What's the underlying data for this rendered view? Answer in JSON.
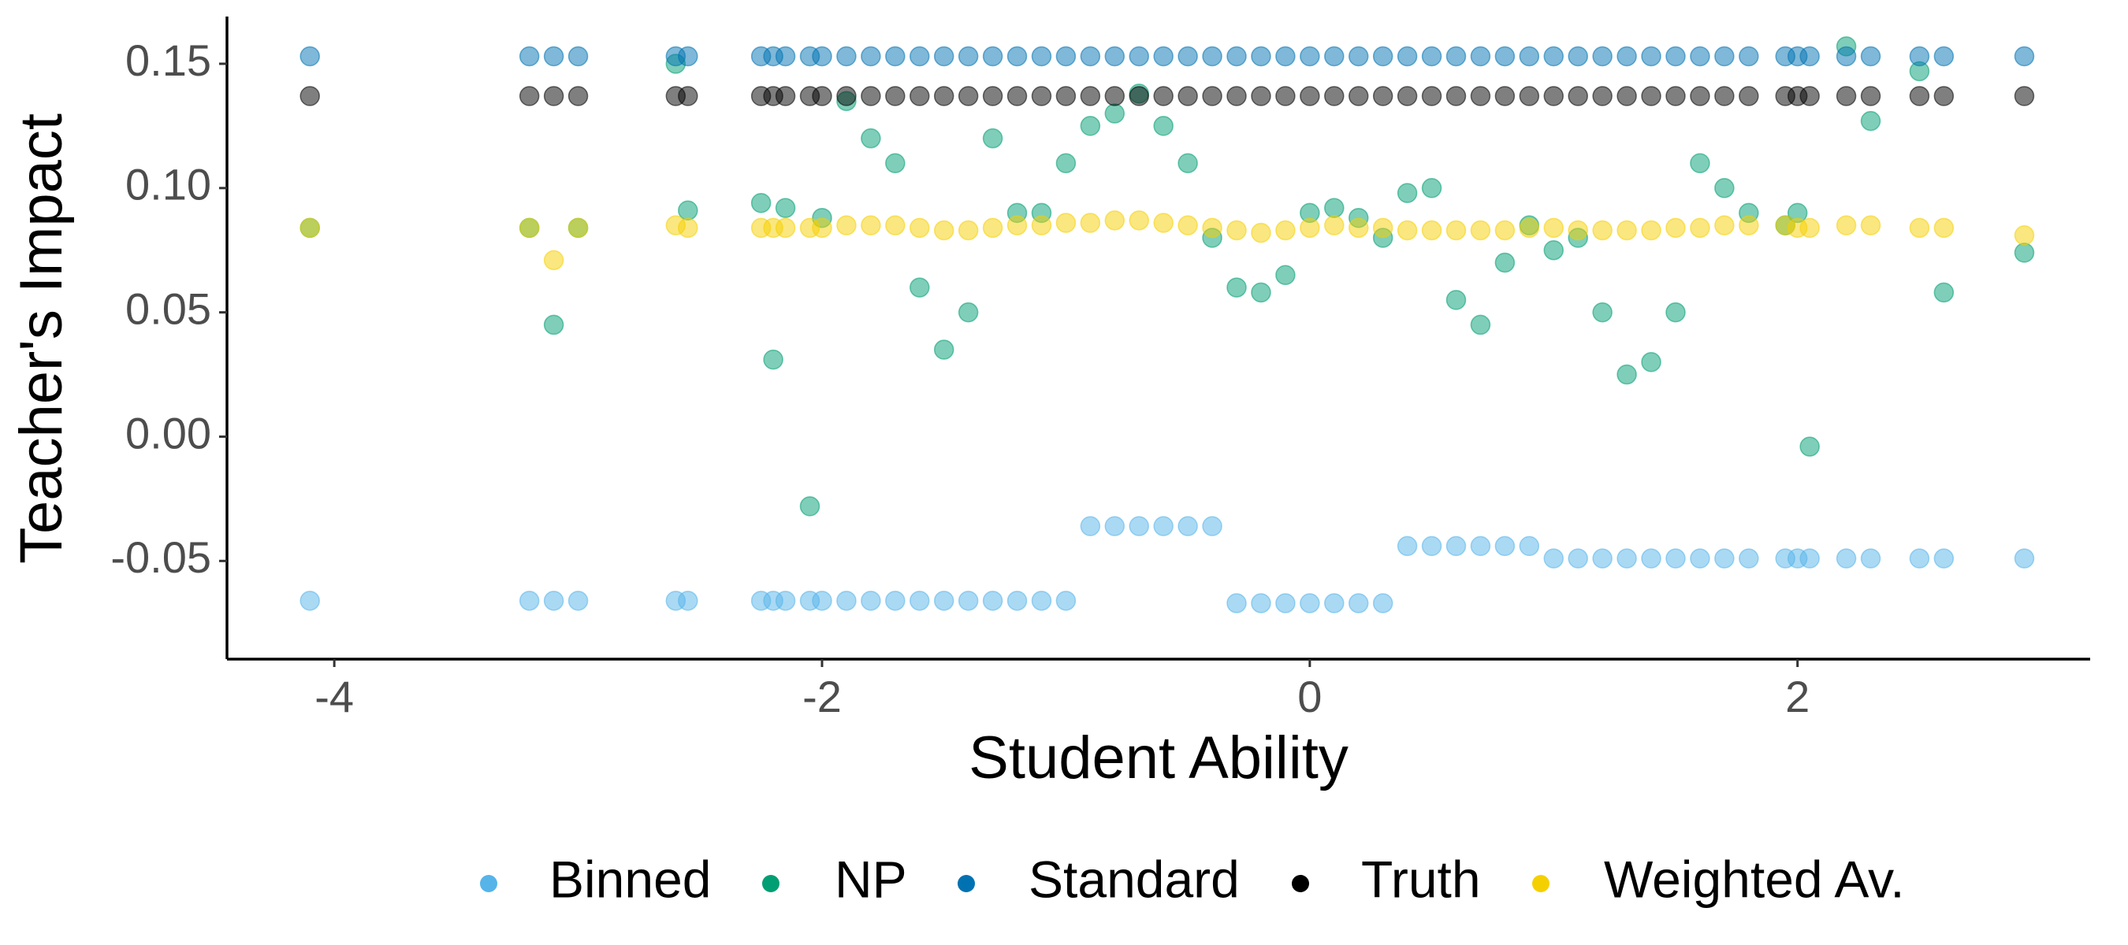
{
  "chart_data": {
    "type": "scatter",
    "xlabel": "Student Ability",
    "ylabel": "Teacher's Impact",
    "xlim": [
      -4.44,
      3.2
    ],
    "ylim": [
      -0.0895,
      0.169
    ],
    "xticks": [
      -4,
      -2,
      0,
      2
    ],
    "yticks": [
      {
        "value": -0.05,
        "label": "-0.05"
      },
      {
        "value": 0,
        "label": "0.00"
      },
      0.05,
      {
        "value": 0.1,
        "label": "0.10"
      },
      0.15
    ],
    "grid": false,
    "legend": "bottom",
    "series": [
      {
        "name": "Binned",
        "color": "#56b4e9",
        "x": [
          -4.1,
          -3.2,
          -3.1,
          -3.0,
          -2.6,
          -2.55,
          -2.25,
          -2.2,
          -2.15,
          -2.05,
          -2.0,
          -1.9,
          -1.8,
          -1.7,
          -1.6,
          -1.5,
          -1.4,
          -1.3,
          -1.2,
          -1.1,
          -1.0,
          -0.9,
          -0.8,
          -0.7,
          -0.6,
          -0.5,
          -0.4,
          -0.3,
          -0.2,
          -0.1,
          0.0,
          0.1,
          0.2,
          0.3,
          0.4,
          0.5,
          0.6,
          0.7,
          0.8,
          0.9,
          1.0,
          1.1,
          1.2,
          1.3,
          1.4,
          1.5,
          1.6,
          1.7,
          1.8,
          1.95,
          2.0,
          2.05,
          2.2,
          2.3,
          2.5,
          2.6,
          2.93
        ],
        "values": [
          -0.066,
          -0.066,
          -0.066,
          -0.066,
          -0.066,
          -0.066,
          -0.066,
          -0.066,
          -0.066,
          -0.066,
          -0.066,
          -0.066,
          -0.066,
          -0.066,
          -0.066,
          -0.066,
          -0.066,
          -0.066,
          -0.066,
          -0.066,
          -0.066,
          -0.036,
          -0.036,
          -0.036,
          -0.036,
          -0.036,
          -0.036,
          -0.067,
          -0.067,
          -0.067,
          -0.067,
          -0.067,
          -0.067,
          -0.067,
          -0.044,
          -0.044,
          -0.044,
          -0.044,
          -0.044,
          -0.044,
          -0.049,
          -0.049,
          -0.049,
          -0.049,
          -0.049,
          -0.049,
          -0.049,
          -0.049,
          -0.049,
          -0.049,
          -0.049,
          -0.049,
          -0.049,
          -0.049,
          -0.049,
          -0.049,
          -0.049
        ]
      },
      {
        "name": "NP",
        "color": "#009e73",
        "x": [
          -4.1,
          -3.2,
          -3.1,
          -3.0,
          -2.6,
          -2.55,
          -2.25,
          -2.2,
          -2.15,
          -2.05,
          -2.0,
          -1.9,
          -1.8,
          -1.7,
          -1.6,
          -1.5,
          -1.4,
          -1.3,
          -1.2,
          -1.1,
          -1.0,
          -0.9,
          -0.8,
          -0.7,
          -0.6,
          -0.5,
          -0.4,
          -0.3,
          -0.2,
          -0.1,
          0.0,
          0.1,
          0.2,
          0.3,
          0.4,
          0.5,
          0.6,
          0.7,
          0.8,
          0.9,
          1.0,
          1.1,
          1.2,
          1.3,
          1.4,
          1.5,
          1.6,
          1.7,
          1.8,
          1.95,
          2.0,
          2.05,
          2.2,
          2.3,
          2.5,
          2.6,
          2.93
        ],
        "values": [
          0.084,
          0.084,
          0.045,
          0.084,
          0.15,
          0.091,
          0.094,
          0.031,
          0.092,
          -0.028,
          0.088,
          0.135,
          0.12,
          0.11,
          0.06,
          0.035,
          0.05,
          0.12,
          0.09,
          0.09,
          0.11,
          0.125,
          0.13,
          0.138,
          0.125,
          0.11,
          0.08,
          0.06,
          0.058,
          0.065,
          0.09,
          0.092,
          0.088,
          0.08,
          0.098,
          0.1,
          0.055,
          0.045,
          0.07,
          0.085,
          0.075,
          0.08,
          0.05,
          0.025,
          0.03,
          0.05,
          0.11,
          0.1,
          0.09,
          0.085,
          0.09,
          -0.004,
          0.157,
          0.127,
          0.147,
          0.058,
          0.074
        ]
      },
      {
        "name": "Standard",
        "color": "#0072b2",
        "x": [
          -4.1,
          -3.2,
          -3.1,
          -3.0,
          -2.6,
          -2.55,
          -2.25,
          -2.2,
          -2.15,
          -2.05,
          -2.0,
          -1.9,
          -1.8,
          -1.7,
          -1.6,
          -1.5,
          -1.4,
          -1.3,
          -1.2,
          -1.1,
          -1.0,
          -0.9,
          -0.8,
          -0.7,
          -0.6,
          -0.5,
          -0.4,
          -0.3,
          -0.2,
          -0.1,
          0.0,
          0.1,
          0.2,
          0.3,
          0.4,
          0.5,
          0.6,
          0.7,
          0.8,
          0.9,
          1.0,
          1.1,
          1.2,
          1.3,
          1.4,
          1.5,
          1.6,
          1.7,
          1.8,
          1.95,
          2.0,
          2.05,
          2.2,
          2.3,
          2.5,
          2.6,
          2.93
        ],
        "values": [
          0.153,
          0.153,
          0.153,
          0.153,
          0.153,
          0.153,
          0.153,
          0.153,
          0.153,
          0.153,
          0.153,
          0.153,
          0.153,
          0.153,
          0.153,
          0.153,
          0.153,
          0.153,
          0.153,
          0.153,
          0.153,
          0.153,
          0.153,
          0.153,
          0.153,
          0.153,
          0.153,
          0.153,
          0.153,
          0.153,
          0.153,
          0.153,
          0.153,
          0.153,
          0.153,
          0.153,
          0.153,
          0.153,
          0.153,
          0.153,
          0.153,
          0.153,
          0.153,
          0.153,
          0.153,
          0.153,
          0.153,
          0.153,
          0.153,
          0.153,
          0.153,
          0.153,
          0.153,
          0.153,
          0.153,
          0.153,
          0.153
        ]
      },
      {
        "name": "Truth",
        "color": "#000000",
        "x": [
          -4.1,
          -3.2,
          -3.1,
          -3.0,
          -2.6,
          -2.55,
          -2.25,
          -2.2,
          -2.15,
          -2.05,
          -2.0,
          -1.9,
          -1.8,
          -1.7,
          -1.6,
          -1.5,
          -1.4,
          -1.3,
          -1.2,
          -1.1,
          -1.0,
          -0.9,
          -0.8,
          -0.7,
          -0.6,
          -0.5,
          -0.4,
          -0.3,
          -0.2,
          -0.1,
          0.0,
          0.1,
          0.2,
          0.3,
          0.4,
          0.5,
          0.6,
          0.7,
          0.8,
          0.9,
          1.0,
          1.1,
          1.2,
          1.3,
          1.4,
          1.5,
          1.6,
          1.7,
          1.8,
          1.95,
          2.0,
          2.05,
          2.2,
          2.3,
          2.5,
          2.6,
          2.93
        ],
        "values": [
          0.137,
          0.137,
          0.137,
          0.137,
          0.137,
          0.137,
          0.137,
          0.137,
          0.137,
          0.137,
          0.137,
          0.137,
          0.137,
          0.137,
          0.137,
          0.137,
          0.137,
          0.137,
          0.137,
          0.137,
          0.137,
          0.137,
          0.137,
          0.137,
          0.137,
          0.137,
          0.137,
          0.137,
          0.137,
          0.137,
          0.137,
          0.137,
          0.137,
          0.137,
          0.137,
          0.137,
          0.137,
          0.137,
          0.137,
          0.137,
          0.137,
          0.137,
          0.137,
          0.137,
          0.137,
          0.137,
          0.137,
          0.137,
          0.137,
          0.137,
          0.137,
          0.137,
          0.137,
          0.137,
          0.137,
          0.137,
          0.137
        ]
      },
      {
        "name": "Weighted Av.",
        "color": "#f5d000",
        "x": [
          -4.1,
          -3.2,
          -3.1,
          -3.0,
          -2.6,
          -2.55,
          -2.25,
          -2.2,
          -2.15,
          -2.05,
          -2.0,
          -1.9,
          -1.8,
          -1.7,
          -1.6,
          -1.5,
          -1.4,
          -1.3,
          -1.2,
          -1.1,
          -1.0,
          -0.9,
          -0.8,
          -0.7,
          -0.6,
          -0.5,
          -0.4,
          -0.3,
          -0.2,
          -0.1,
          0.0,
          0.1,
          0.2,
          0.3,
          0.4,
          0.5,
          0.6,
          0.7,
          0.8,
          0.9,
          1.0,
          1.1,
          1.2,
          1.3,
          1.4,
          1.5,
          1.6,
          1.7,
          1.8,
          1.95,
          2.0,
          2.05,
          2.2,
          2.3,
          2.5,
          2.6,
          2.93
        ],
        "values": [
          0.084,
          0.084,
          0.071,
          0.084,
          0.085,
          0.084,
          0.084,
          0.084,
          0.084,
          0.084,
          0.084,
          0.085,
          0.085,
          0.085,
          0.084,
          0.083,
          0.083,
          0.084,
          0.085,
          0.085,
          0.086,
          0.086,
          0.087,
          0.087,
          0.086,
          0.085,
          0.084,
          0.083,
          0.082,
          0.083,
          0.084,
          0.085,
          0.084,
          0.084,
          0.083,
          0.083,
          0.083,
          0.083,
          0.083,
          0.084,
          0.084,
          0.083,
          0.083,
          0.083,
          0.083,
          0.084,
          0.084,
          0.085,
          0.085,
          0.085,
          0.084,
          0.084,
          0.085,
          0.085,
          0.084,
          0.084,
          0.081
        ]
      }
    ]
  }
}
